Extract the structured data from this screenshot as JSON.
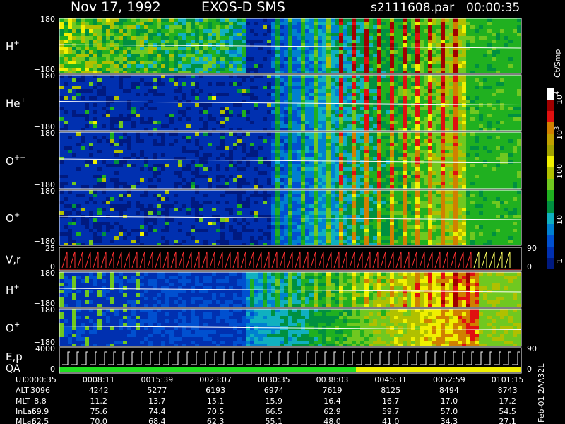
{
  "header": {
    "date": "Nov 17, 1992",
    "instrument": "EXOS-D SMS",
    "file": "s2111608.par",
    "time": "00:00:35"
  },
  "panels": [
    {
      "label": "H",
      "sup": "+",
      "ticks": [
        "180",
        "−180"
      ]
    },
    {
      "label": "He",
      "sup": "+",
      "ticks": [
        "180",
        "−180"
      ]
    },
    {
      "label": "O",
      "sup": "++",
      "ticks": [
        "180",
        "−180"
      ]
    },
    {
      "label": "O",
      "sup": "+",
      "ticks": [
        "180",
        "−180"
      ]
    },
    {
      "label": "V,r",
      "sup": "",
      "ticks": [
        "25",
        "0"
      ],
      "right_ticks": [
        "90",
        "0"
      ]
    },
    {
      "label": "H",
      "sup": "+",
      "ticks": [
        "180",
        "−180"
      ]
    },
    {
      "label": "O",
      "sup": "+",
      "ticks": [
        "180",
        "−180"
      ]
    },
    {
      "label": "E,p",
      "sup": "",
      "label2": "QA",
      "ticks": [
        "4000",
        "0"
      ],
      "right_ticks": [
        "90",
        "0"
      ]
    }
  ],
  "colorbar": {
    "unit": "Ct/Smp",
    "ticks": [
      {
        "base": "10",
        "exp": "4"
      },
      {
        "base": "10",
        "exp": "3"
      },
      {
        "base": "100",
        "exp": ""
      },
      {
        "base": "10",
        "exp": ""
      },
      {
        "base": "1",
        "exp": ""
      }
    ]
  },
  "footer": {
    "rows": [
      {
        "label": "UT",
        "values": [
          "0000:35",
          "0008:11",
          "0015:39",
          "0023:07",
          "0030:35",
          "0038:03",
          "0045:31",
          "0052:59",
          "0101:15"
        ]
      },
      {
        "label": "ALT",
        "values": [
          "3096",
          "4242",
          "5277",
          "6193",
          "6974",
          "7619",
          "8125",
          "8494",
          "8743"
        ]
      },
      {
        "label": "MLT",
        "values": [
          "8.8",
          "11.2",
          "13.7",
          "15.1",
          "15.9",
          "16.4",
          "16.7",
          "17.0",
          "17.2"
        ]
      },
      {
        "label": "InLat",
        "values": [
          "69.9",
          "75.6",
          "74.4",
          "70.5",
          "66.5",
          "62.9",
          "59.7",
          "57.0",
          "54.5"
        ]
      },
      {
        "label": "MLat",
        "values": [
          "62.5",
          "70.0",
          "68.4",
          "62.3",
          "55.1",
          "48.0",
          "41.0",
          "34.3",
          "27.1"
        ]
      }
    ],
    "side_label": "Feb-01 2AA32L"
  }
}
